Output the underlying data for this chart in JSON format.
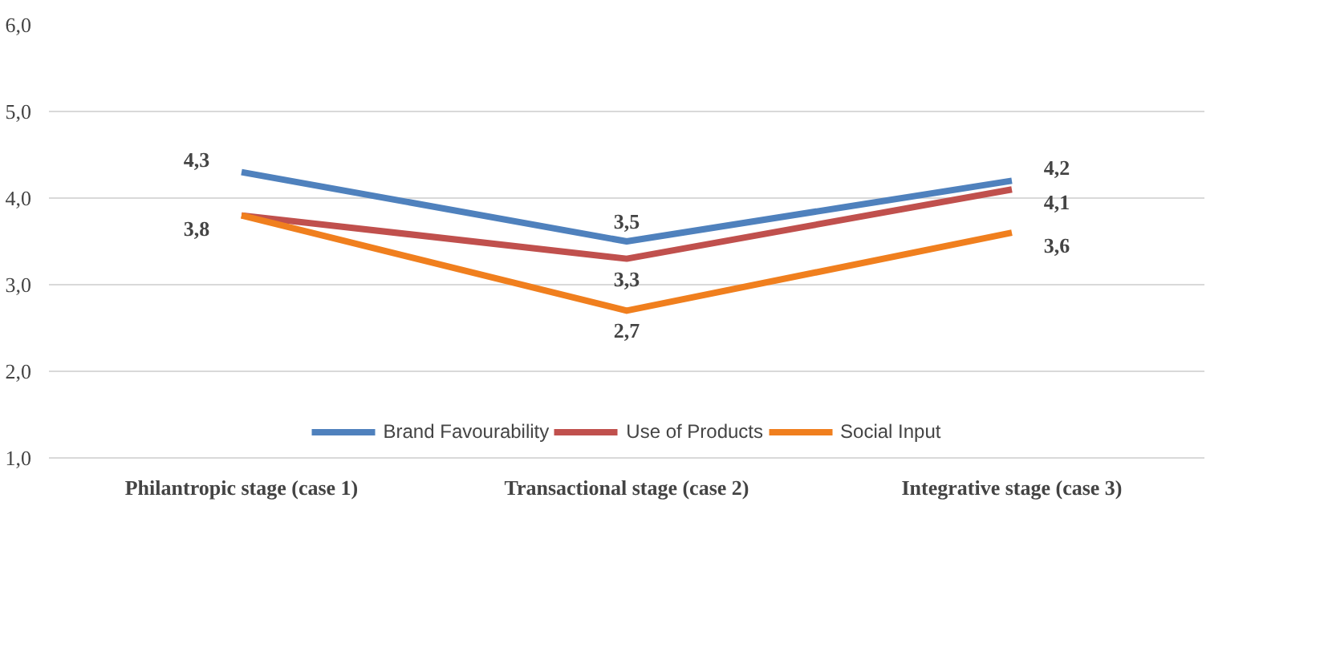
{
  "chart_data": {
    "type": "line",
    "categories": [
      "Philantropic stage (case 1)",
      "Transactional stage (case 2)",
      "Integrative stage (case 3)"
    ],
    "series": [
      {
        "name": "Brand Favourability",
        "color": "#4f81bd",
        "values": [
          4.3,
          3.5,
          4.2
        ],
        "value_labels": [
          "4,3",
          "3,5",
          "4,2"
        ]
      },
      {
        "name": "Use of Products",
        "color": "#c0504d",
        "values": [
          3.8,
          3.3,
          4.1
        ],
        "value_labels": [
          "3,8",
          "3,3",
          "4,1"
        ]
      },
      {
        "name": "Social Input",
        "color": "#f07f1e",
        "values": [
          3.8,
          2.7,
          3.6
        ],
        "value_labels": [
          null,
          "2,7",
          "3,6"
        ]
      }
    ],
    "ylim": [
      1,
      6
    ],
    "yticks": [
      {
        "value": 1,
        "label": "1,0"
      },
      {
        "value": 2,
        "label": "2,0"
      },
      {
        "value": 3,
        "label": "3,0"
      },
      {
        "value": 4,
        "label": "4,0"
      },
      {
        "value": 5,
        "label": "5,0"
      },
      {
        "value": 6,
        "label": "6,0"
      }
    ],
    "grid": "y",
    "legend": "bottom",
    "marker": "none",
    "line_style": "solid"
  }
}
